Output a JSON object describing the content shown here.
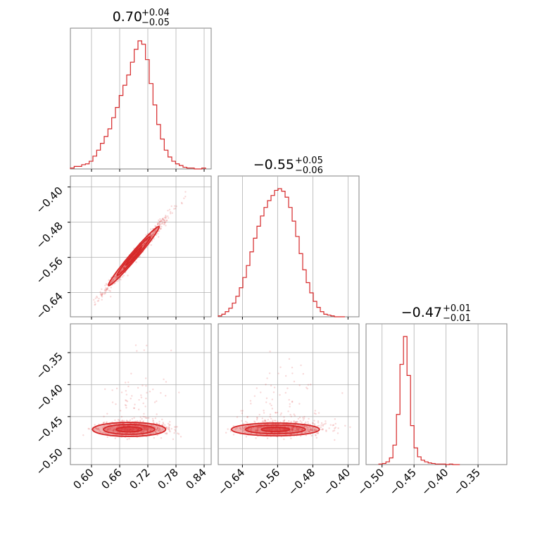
{
  "chart_data": {
    "type": "corner",
    "color": "#d62728",
    "grid": true,
    "parameters": [
      {
        "title_value": "0.70",
        "title_plus": "+0.04",
        "title_minus": "−0.05",
        "median": 0.7,
        "range": [
          0.555,
          0.855
        ],
        "ticks": [
          0.6,
          0.66,
          0.72,
          0.78,
          0.84
        ],
        "tick_labels": [
          "0.60",
          "0.66",
          "0.72",
          "0.78",
          "0.84"
        ],
        "hist": [
          [
            0.555,
            1
          ],
          [
            0.563,
            3
          ],
          [
            0.571,
            3
          ],
          [
            0.579,
            5
          ],
          [
            0.587,
            6
          ],
          [
            0.595,
            9
          ],
          [
            0.603,
            15
          ],
          [
            0.611,
            22
          ],
          [
            0.619,
            30
          ],
          [
            0.627,
            38
          ],
          [
            0.635,
            47
          ],
          [
            0.643,
            60
          ],
          [
            0.651,
            72
          ],
          [
            0.659,
            86
          ],
          [
            0.667,
            98
          ],
          [
            0.675,
            110
          ],
          [
            0.683,
            125
          ],
          [
            0.691,
            140
          ],
          [
            0.699,
            150
          ],
          [
            0.707,
            146
          ],
          [
            0.715,
            128
          ],
          [
            0.723,
            100
          ],
          [
            0.731,
            75
          ],
          [
            0.739,
            52
          ],
          [
            0.747,
            35
          ],
          [
            0.755,
            22
          ],
          [
            0.763,
            14
          ],
          [
            0.771,
            9
          ],
          [
            0.779,
            6
          ],
          [
            0.787,
            4
          ],
          [
            0.795,
            2
          ],
          [
            0.803,
            1
          ],
          [
            0.811,
            1
          ],
          [
            0.819,
            0
          ],
          [
            0.827,
            0
          ],
          [
            0.835,
            1
          ]
        ]
      },
      {
        "title_value": "−0.55",
        "title_plus": "+0.05",
        "title_minus": "−0.06",
        "median": -0.55,
        "range": [
          -0.695,
          -0.375
        ],
        "ticks": [
          -0.64,
          -0.56,
          -0.48,
          -0.4
        ],
        "tick_labels": [
          "−0.64",
          "−0.56",
          "−0.48",
          "−0.40"
        ],
        "hist": [
          [
            -0.695,
            1
          ],
          [
            -0.687,
            3
          ],
          [
            -0.679,
            6
          ],
          [
            -0.671,
            10
          ],
          [
            -0.663,
            16
          ],
          [
            -0.655,
            24
          ],
          [
            -0.647,
            34
          ],
          [
            -0.639,
            46
          ],
          [
            -0.631,
            60
          ],
          [
            -0.623,
            76
          ],
          [
            -0.615,
            92
          ],
          [
            -0.607,
            106
          ],
          [
            -0.599,
            118
          ],
          [
            -0.591,
            128
          ],
          [
            -0.583,
            136
          ],
          [
            -0.575,
            142
          ],
          [
            -0.567,
            148
          ],
          [
            -0.559,
            150
          ],
          [
            -0.551,
            147
          ],
          [
            -0.543,
            140
          ],
          [
            -0.535,
            128
          ],
          [
            -0.527,
            112
          ],
          [
            -0.519,
            94
          ],
          [
            -0.511,
            74
          ],
          [
            -0.503,
            55
          ],
          [
            -0.495,
            40
          ],
          [
            -0.487,
            28
          ],
          [
            -0.479,
            18
          ],
          [
            -0.471,
            11
          ],
          [
            -0.463,
            6
          ],
          [
            -0.455,
            3
          ],
          [
            -0.447,
            2
          ],
          [
            -0.439,
            1
          ],
          [
            -0.431,
            0
          ],
          [
            -0.423,
            0
          ],
          [
            -0.415,
            0
          ]
        ]
      },
      {
        "title_value": "−0.47",
        "title_plus": "+0.01",
        "title_minus": "−0.01",
        "median": -0.47,
        "range": [
          -0.525,
          -0.305
        ],
        "ticks": [
          -0.5,
          -0.45,
          -0.4,
          -0.35
        ],
        "tick_labels": [
          "−0.50",
          "−0.45",
          "−0.40",
          "−0.35"
        ],
        "hist": [
          [
            -0.505,
            1
          ],
          [
            -0.4995,
            2
          ],
          [
            -0.494,
            5
          ],
          [
            -0.4885,
            12
          ],
          [
            -0.483,
            35
          ],
          [
            -0.4775,
            90
          ],
          [
            -0.472,
            180
          ],
          [
            -0.4665,
            230
          ],
          [
            -0.461,
            160
          ],
          [
            -0.4555,
            70
          ],
          [
            -0.45,
            30
          ],
          [
            -0.4445,
            14
          ],
          [
            -0.439,
            8
          ],
          [
            -0.4335,
            5
          ],
          [
            -0.428,
            3
          ],
          [
            -0.4225,
            2
          ],
          [
            -0.417,
            1
          ],
          [
            -0.4115,
            1
          ],
          [
            -0.406,
            1
          ],
          [
            -0.4005,
            0
          ],
          [
            -0.395,
            1
          ],
          [
            -0.3895,
            0
          ],
          [
            -0.384,
            0
          ]
        ]
      }
    ]
  }
}
